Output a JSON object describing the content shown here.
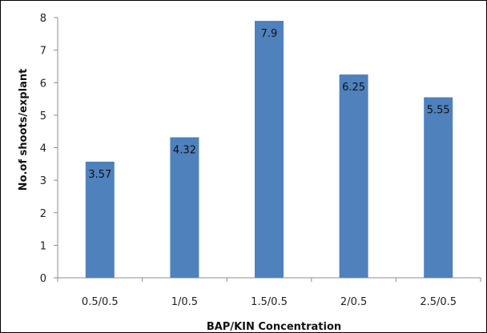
{
  "chart_data": {
    "type": "bar",
    "title": "",
    "xlabel": "BAP/KIN Concentration",
    "ylabel": "No.of shoots/explant",
    "categories": [
      "0.5/0.5",
      "1/0.5",
      "1.5/0.5",
      "2/0.5",
      "2.5/0.5"
    ],
    "values": [
      3.57,
      4.32,
      7.9,
      6.25,
      5.55
    ],
    "data_labels": [
      "3.57",
      "4.32",
      "7.9",
      "6.25",
      "5.55"
    ],
    "ylim": [
      0,
      8
    ],
    "yticks": [
      0,
      1,
      2,
      3,
      4,
      5,
      6,
      7,
      8
    ],
    "grid": false,
    "legend": "none",
    "bar_color": "#4F81BD"
  }
}
